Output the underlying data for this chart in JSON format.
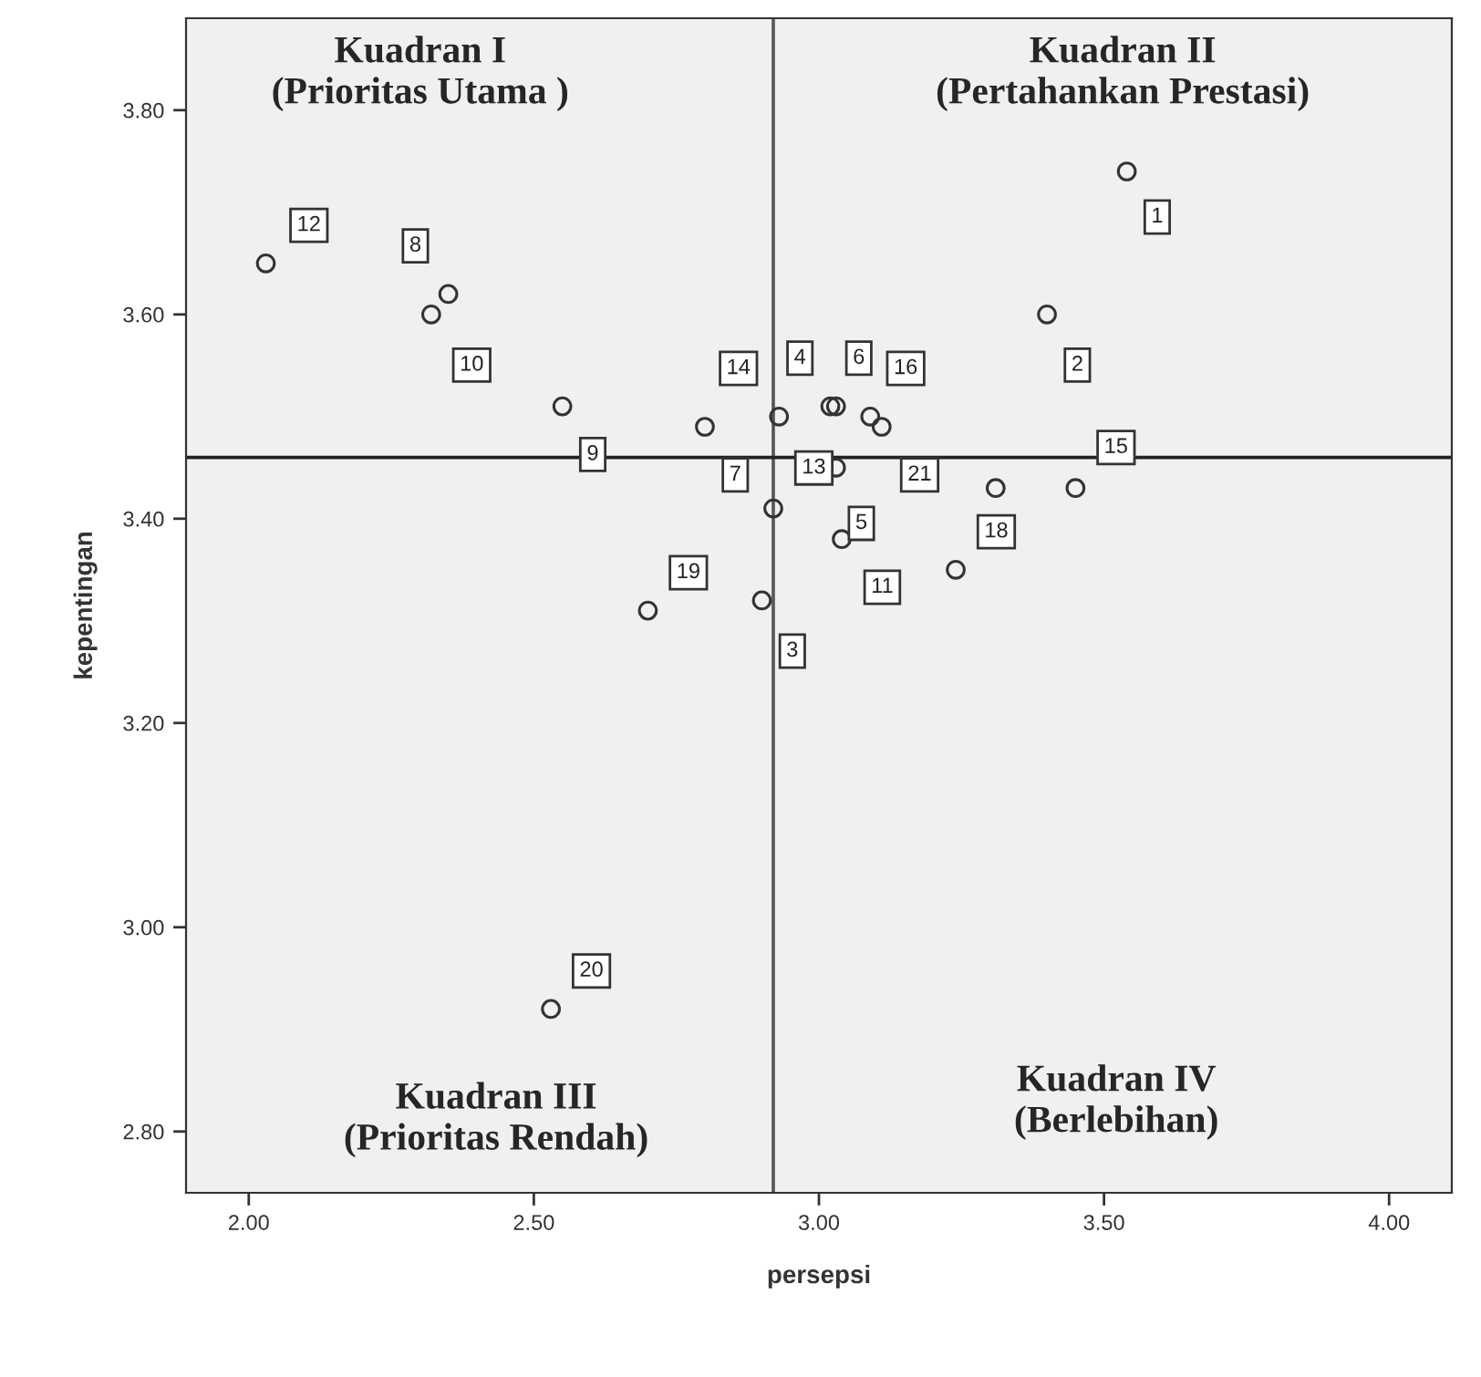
{
  "chart_data": {
    "type": "scatter",
    "xlabel": "persepsi",
    "ylabel": "kepentingan",
    "x": [
      3.54,
      3.4,
      2.9,
      3.02,
      3.03,
      3.03,
      2.8,
      2.35,
      2.55,
      2.32,
      3.04,
      2.03,
      2.92,
      2.93,
      3.45,
      3.09,
      3.31,
      3.24,
      2.7,
      2.53,
      3.11
    ],
    "series": [
      {
        "color": "#333333",
        "values": [
          3.74,
          3.6,
          3.32,
          3.51,
          3.45,
          3.51,
          3.49,
          3.62,
          3.51,
          3.6,
          3.38,
          3.65,
          3.41,
          3.5,
          3.43,
          3.5,
          3.43,
          3.35,
          3.31,
          2.92,
          3.49
        ]
      }
    ],
    "marker": "circle",
    "xlim": [
      1.89,
      4.11
    ],
    "xticks": [
      {
        "value": 2.0,
        "label": "2.00"
      },
      {
        "value": 2.5,
        "label": "2.50"
      },
      {
        "value": 3.0,
        "label": "3.00"
      },
      {
        "value": 3.5,
        "label": "3.50"
      },
      {
        "value": 4.0,
        "label": "4.00"
      }
    ],
    "ylim": [
      2.74,
      3.89
    ],
    "yticks": [
      {
        "value": 2.8,
        "label": "2.80"
      },
      {
        "value": 3.0,
        "label": "3.00"
      },
      {
        "value": 3.2,
        "label": "3.20"
      },
      {
        "value": 3.4,
        "label": "3.40"
      },
      {
        "value": 3.6,
        "label": "3.60"
      },
      {
        "value": 3.8,
        "label": "3.80"
      }
    ],
    "grid": false,
    "legend": false,
    "ref_lines": [
      {
        "axis": "x",
        "value": 2.92,
        "color": "#555555"
      },
      {
        "axis": "y",
        "value": 3.46,
        "color": "#222222"
      }
    ],
    "annotations": [
      "Kuadran I\n(Prioritas Utama )",
      "Kuadran II\n(Pertahankan Prestasi)",
      "Kuadran III\n(Prioritas Rendah)",
      "Kuadran IV\n(Berlebihan)",
      {
        "text": "1",
        "x": 3.54,
        "y": 3.74
      },
      {
        "text": "2",
        "x": 3.4,
        "y": 3.6
      },
      {
        "text": "3",
        "x": 2.9,
        "y": 3.32
      },
      {
        "text": "4",
        "x": 3.02,
        "y": 3.51
      },
      {
        "text": "5",
        "x": 3.03,
        "y": 3.45
      },
      {
        "text": "6",
        "x": 3.03,
        "y": 3.51
      },
      {
        "text": "7",
        "x": 2.8,
        "y": 3.49
      },
      {
        "text": "8",
        "x": 2.35,
        "y": 3.62
      },
      {
        "text": "9",
        "x": 2.55,
        "y": 3.51
      },
      {
        "text": "10",
        "x": 2.32,
        "y": 3.6
      },
      {
        "text": "11",
        "x": 3.04,
        "y": 3.38
      },
      {
        "text": "12",
        "x": 2.03,
        "y": 3.65
      },
      {
        "text": "13",
        "x": 2.92,
        "y": 3.41
      },
      {
        "text": "14",
        "x": 2.93,
        "y": 3.5
      },
      {
        "text": "15",
        "x": 3.45,
        "y": 3.43
      },
      {
        "text": "16",
        "x": 3.09,
        "y": 3.5
      },
      {
        "text": "18",
        "x": 3.24,
        "y": 3.35
      },
      {
        "text": "19",
        "x": 2.7,
        "y": 3.31
      },
      {
        "text": "20",
        "x": 2.53,
        "y": 2.92
      },
      {
        "text": "21",
        "x": 3.11,
        "y": 3.49
      }
    ]
  }
}
